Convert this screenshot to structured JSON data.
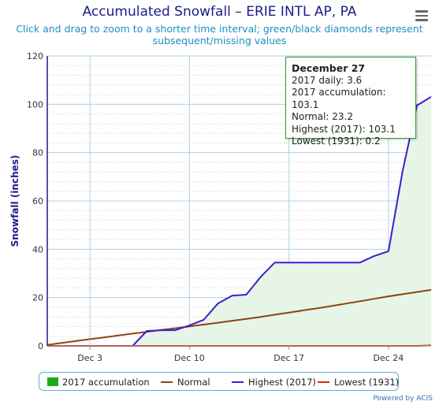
{
  "title": "Accumulated Snowfall – ERIE INTL AP, PA",
  "subtitle": "Click and drag to zoom to a shorter time interval; green/black diamonds represent subsequent/missing values",
  "menu_icon": "hamburger-menu-icon",
  "credits": "Powered by ACIS",
  "tooltip": {
    "date": "December 27",
    "lines": [
      "2017 daily: 3.6",
      "2017 accumulation: 103.1",
      "Normal: 23.2",
      "Highest (2017): 103.1",
      "Lowest (1931): 0.2"
    ]
  },
  "chart_data": {
    "type": "area",
    "xlabel": "",
    "ylabel": "Snowfall (inches)",
    "ylim": [
      0,
      120
    ],
    "xlim": [
      0,
      27
    ],
    "x_unit": "day of December",
    "x": [
      0,
      1,
      2,
      3,
      4,
      5,
      6,
      7,
      8,
      9,
      10,
      11,
      12,
      13,
      14,
      15,
      16,
      17,
      18,
      19,
      20,
      21,
      22,
      23,
      24,
      25,
      26,
      27
    ],
    "x_ticks": [
      {
        "day": 3,
        "label": "Dec 3"
      },
      {
        "day": 10,
        "label": "Dec 10"
      },
      {
        "day": 17,
        "label": "Dec 17"
      },
      {
        "day": 24,
        "label": "Dec 24"
      }
    ],
    "y_ticks": [
      0,
      20,
      40,
      60,
      80,
      100,
      120
    ],
    "grid": true,
    "legend_position": "bottom",
    "series": [
      {
        "name": "2017 accumulation",
        "kind": "area",
        "color": "#e6f5e6",
        "swatch": "#1aaa1a",
        "values": [
          0,
          0,
          0,
          0,
          0,
          0,
          0,
          6.2,
          6.5,
          6.5,
          8.5,
          10.8,
          17.5,
          20.8,
          21.2,
          28.5,
          34.5,
          34.5,
          34.5,
          34.5,
          34.5,
          34.5,
          34.5,
          37.2,
          39.2,
          72.5,
          99.5,
          103.1
        ]
      },
      {
        "name": "Normal",
        "kind": "line",
        "color": "#8b4513",
        "values": [
          0.4,
          1.2,
          2.0,
          2.8,
          3.5,
          4.3,
          5.1,
          5.8,
          6.6,
          7.3,
          8.1,
          8.8,
          9.6,
          10.4,
          11.2,
          12.0,
          12.9,
          13.8,
          14.7,
          15.6,
          16.5,
          17.5,
          18.5,
          19.5,
          20.5,
          21.4,
          22.3,
          23.2
        ]
      },
      {
        "name": "Highest (2017)",
        "kind": "line",
        "color": "#3a1ed0",
        "values": [
          0,
          0,
          0,
          0,
          0,
          0,
          0,
          6.2,
          6.5,
          6.5,
          8.5,
          10.8,
          17.5,
          20.8,
          21.2,
          28.5,
          34.5,
          34.5,
          34.5,
          34.5,
          34.5,
          34.5,
          34.5,
          37.2,
          39.2,
          72.5,
          99.5,
          103.1
        ]
      },
      {
        "name": "Lowest (1931)",
        "kind": "line",
        "color": "#d42a1a",
        "values": [
          0,
          0,
          0,
          0,
          0,
          0,
          0,
          0,
          0,
          0,
          0,
          0,
          0,
          0,
          0,
          0,
          0,
          0,
          0,
          0,
          0,
          0,
          0,
          0,
          0,
          0,
          0,
          0.2
        ]
      }
    ]
  }
}
